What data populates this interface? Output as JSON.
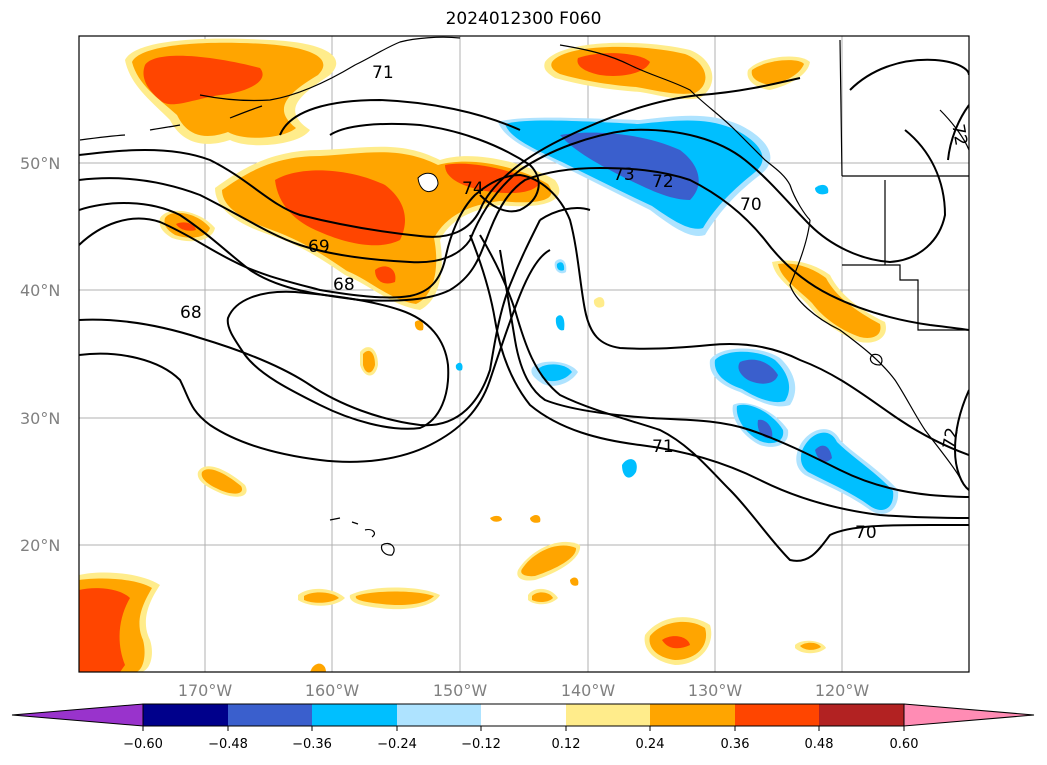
{
  "title": "2024012300 F060",
  "lat_labels": [
    "50°N",
    "40°N",
    "30°N",
    "20°N"
  ],
  "lon_labels": [
    "170°W",
    "160°W",
    "150°W",
    "140°W",
    "130°W",
    "120°W"
  ],
  "contour_labels": [
    "71",
    "74",
    "73",
    "72",
    "70",
    "69",
    "68",
    "68",
    "71",
    "70",
    "72",
    "72"
  ],
  "colorbar": {
    "ticks": [
      "−0.60",
      "−0.48",
      "−0.36",
      "−0.24",
      "−0.12",
      "0.12",
      "0.24",
      "0.36",
      "0.48",
      "0.60"
    ],
    "colors": [
      "#9933cc",
      "#00008b",
      "#3a5fcd",
      "#00bfff",
      "#aee3ff",
      "#ffffff",
      "#ffec8b",
      "#ffa500",
      "#ff4500",
      "#b22222",
      "#ff8cb4"
    ]
  }
}
